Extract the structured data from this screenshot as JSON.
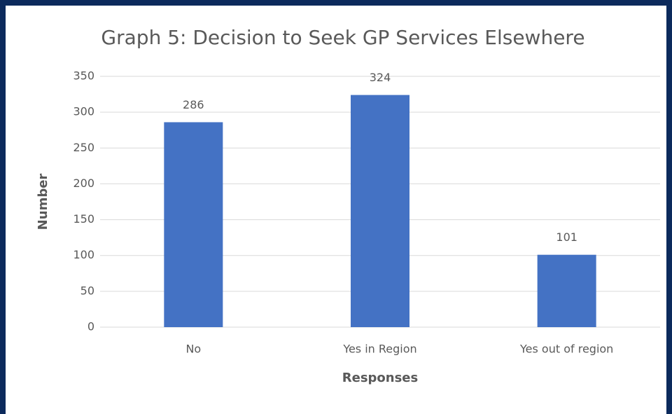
{
  "chart_data": {
    "type": "bar",
    "title": "Graph 5: Decision to Seek GP Services Elsewhere",
    "x_label": "Responses",
    "y_label": "Number",
    "categories": [
      "No",
      "Yes in Region",
      "Yes out of region"
    ],
    "values": [
      286,
      324,
      101
    ],
    "color": "#4472c4",
    "ylim": [
      0,
      350
    ],
    "yticks": [
      0,
      50,
      100,
      150,
      200,
      250,
      300,
      350
    ],
    "grid": true
  }
}
